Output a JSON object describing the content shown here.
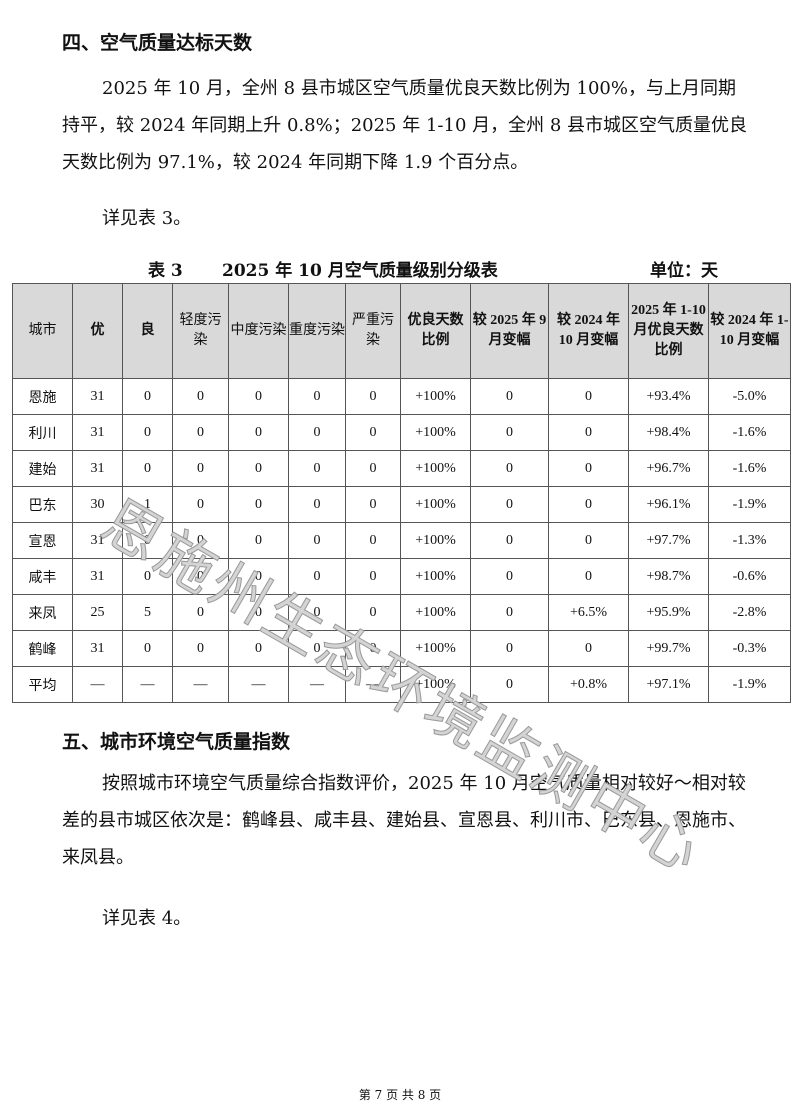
{
  "section4": {
    "heading": "四、空气质量达标天数",
    "para1": "2025 年 10 月，全州 8 县市城区空气质量优良天数比例为 100%，与上月同期持平，较 2024 年同期上升 0.8%；2025 年 1-10 月，全州 8 县市城区空气质量优良天数比例为 97.1%，较 2024 年同期下降 1.9 个百分点。",
    "para2": "详见表 3。"
  },
  "table": {
    "label": "表 3",
    "title": "2025 年 10 月空气质量级别分级表",
    "unit": "单位：天",
    "headers": [
      "城市",
      "优",
      "良",
      "轻度污染",
      "中度污染",
      "重度污染",
      "严重污染",
      "优良天数比例",
      "较 2025 年 9 月变幅",
      "较 2024 年 10 月变幅",
      "2025 年 1-10 月优良天数比例",
      "较 2024 年 1-10 月变幅"
    ],
    "rows": [
      [
        "恩施",
        "31",
        "0",
        "0",
        "0",
        "0",
        "0",
        "+100%",
        "0",
        "0",
        "+93.4%",
        "-5.0%"
      ],
      [
        "利川",
        "31",
        "0",
        "0",
        "0",
        "0",
        "0",
        "+100%",
        "0",
        "0",
        "+98.4%",
        "-1.6%"
      ],
      [
        "建始",
        "31",
        "0",
        "0",
        "0",
        "0",
        "0",
        "+100%",
        "0",
        "0",
        "+96.7%",
        "-1.6%"
      ],
      [
        "巴东",
        "30",
        "1",
        "0",
        "0",
        "0",
        "0",
        "+100%",
        "0",
        "0",
        "+96.1%",
        "-1.9%"
      ],
      [
        "宣恩",
        "31",
        "0",
        "0",
        "0",
        "0",
        "0",
        "+100%",
        "0",
        "0",
        "+97.7%",
        "-1.3%"
      ],
      [
        "咸丰",
        "31",
        "0",
        "0",
        "0",
        "0",
        "0",
        "+100%",
        "0",
        "0",
        "+98.7%",
        "-0.6%"
      ],
      [
        "来凤",
        "25",
        "5",
        "0",
        "0",
        "0",
        "0",
        "+100%",
        "0",
        "+6.5%",
        "+95.9%",
        "-2.8%"
      ],
      [
        "鹤峰",
        "31",
        "0",
        "0",
        "0",
        "0",
        "0",
        "+100%",
        "0",
        "0",
        "+99.7%",
        "-0.3%"
      ],
      [
        "平均",
        "—",
        "—",
        "—",
        "—",
        "—",
        "—",
        "+100%",
        "0",
        "+0.8%",
        "+97.1%",
        "-1.9%"
      ]
    ]
  },
  "section5": {
    "heading": "五、城市环境空气质量指数",
    "para1": "按照城市环境空气质量综合指数评价，2025 年 10 月空气质量相对较好～相对较差的县市城区依次是：鹤峰县、咸丰县、建始县、宣恩县、利川市、巴东县、恩施市、来凤县。",
    "para2": "详见表 4。"
  },
  "watermark": "恩施州生态环境监测中心",
  "footer": "第 7 页 共 8 页"
}
